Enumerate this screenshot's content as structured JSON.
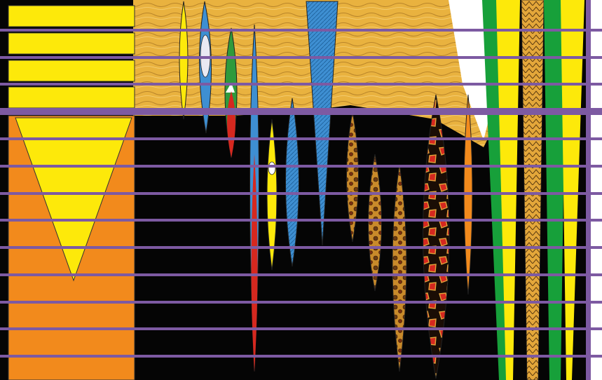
{
  "artwork": {
    "palette": {
      "background_black": "#050505",
      "hair_gold": "#e9b23f",
      "hair_light": "#f3cf6a",
      "yellow": "#fde90a",
      "orange": "#f28a1c",
      "purple": "#7d5aa2",
      "green": "#17a03a",
      "blue": "#3e8fd2",
      "red": "#d5281f",
      "white": "#ffffff"
    }
  }
}
